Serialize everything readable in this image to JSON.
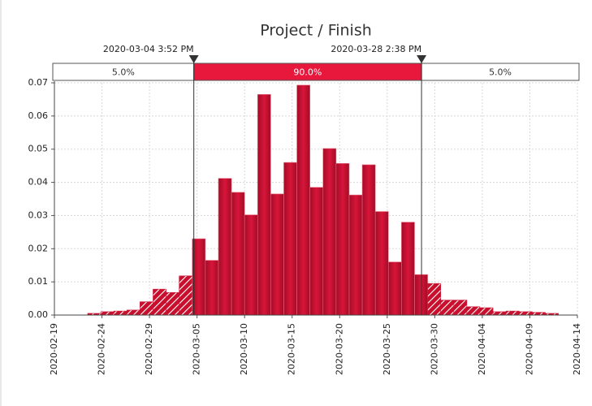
{
  "chart_data": {
    "type": "histogram",
    "title": "Project / Finish",
    "bins": [
      "2020-02-22T12:00",
      "2020-02-23T21:00",
      "2020-02-25T06:00",
      "2020-02-26T15:00",
      "2020-02-28T00:00",
      "2020-02-29T09:00",
      "2020-03-01T18:00",
      "2020-03-03T03:00",
      "2020-03-04T12:00",
      "2020-03-05T21:00",
      "2020-03-07T06:00",
      "2020-03-08T15:00",
      "2020-03-10T00:00",
      "2020-03-11T09:00",
      "2020-03-12T18:00",
      "2020-03-14T03:00",
      "2020-03-15T12:00",
      "2020-03-16T21:00",
      "2020-03-18T06:00",
      "2020-03-19T15:00",
      "2020-03-21T00:00",
      "2020-03-22T09:00",
      "2020-03-23T18:00",
      "2020-03-25T03:00",
      "2020-03-26T12:00",
      "2020-03-27T21:00",
      "2020-03-29T06:00",
      "2020-03-30T15:00",
      "2020-04-01T00:00",
      "2020-04-02T09:00",
      "2020-04-03T18:00",
      "2020-04-05T03:00",
      "2020-04-06T12:00",
      "2020-04-07T21:00",
      "2020-04-09T06:00",
      "2020-04-10T15:00",
      "2020-04-12T00:00"
    ],
    "counts": [
      0.0005,
      0.001,
      0.0012,
      0.0015,
      0.004,
      0.0078,
      0.0068,
      0.0118,
      0.023,
      0.0165,
      0.0412,
      0.037,
      0.0302,
      0.0665,
      0.0365,
      0.046,
      0.0693,
      0.0385,
      0.0502,
      0.0457,
      0.0362,
      0.0453,
      0.0312,
      0.016,
      0.028,
      0.0122,
      0.0095,
      0.0045,
      0.0045,
      0.0025,
      0.0022,
      0.001,
      0.0012,
      0.001,
      0.0008,
      0.0005
    ],
    "color": "#c8102e",
    "xlim": [
      "2020-02-19",
      "2020-04-14"
    ],
    "xticks": [
      "2020-02-19",
      "2020-02-24",
      "2020-02-29",
      "2020-03-05",
      "2020-03-10",
      "2020-03-15",
      "2020-03-20",
      "2020-03-25",
      "2020-03-30",
      "2020-04-04",
      "2020-04-09",
      "2020-04-14"
    ],
    "ylim": [
      0,
      0.07
    ],
    "yticks": [
      {
        "value": 0,
        "label": "0.00"
      },
      0.01,
      0.02,
      0.03,
      0.04,
      0.05,
      0.06,
      0.07
    ],
    "grid": true,
    "delimiters": [
      {
        "value": "2020-03-04T15:52",
        "label": "2020-03-04 3:52 PM"
      },
      {
        "value": "2020-03-28T14:38",
        "label": "2020-03-28 2:38 PM"
      }
    ],
    "band": {
      "values": [
        5,
        90,
        5
      ],
      "value_labels": [
        "5.0%",
        "90.0%",
        "5.0%"
      ]
    }
  }
}
